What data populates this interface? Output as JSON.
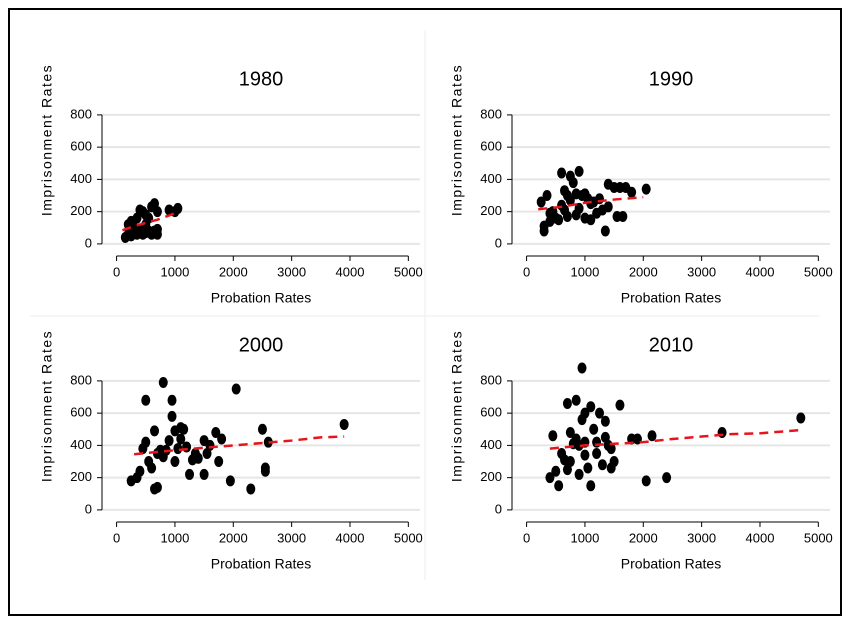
{
  "chart_data": [
    {
      "type": "scatter",
      "title": "1980",
      "xlabel": "Probation Rates",
      "ylabel": "Imprisonment Rates",
      "xlim": [
        -250,
        5200
      ],
      "ylim": [
        -75,
        880
      ],
      "xticks": [
        0,
        1000,
        2000,
        3000,
        4000,
        5000
      ],
      "yticks": [
        0,
        200,
        400,
        600,
        800
      ],
      "grid": true,
      "series": [
        {
          "color": "#000000",
          "x": [
            150,
            200,
            250,
            300,
            300,
            350,
            400,
            400,
            450,
            450,
            500,
            500,
            550,
            550,
            600,
            600,
            650,
            650,
            700,
            700,
            700,
            900,
            1000,
            1050,
            200,
            350,
            500,
            250
          ],
          "values": [
            40,
            60,
            140,
            100,
            70,
            160,
            210,
            90,
            60,
            200,
            120,
            70,
            80,
            160,
            60,
            230,
            250,
            80,
            200,
            60,
            90,
            210,
            200,
            220,
            120,
            60,
            180,
            50
          ]
        },
        {
          "color": "#e8141c",
          "line": "dashed",
          "x": [
            100,
            300,
            500,
            700,
            1000
          ],
          "values": [
            85,
            110,
            130,
            150,
            190
          ]
        }
      ]
    },
    {
      "type": "scatter",
      "title": "1990",
      "xlabel": "Probation Rates",
      "ylabel": "Imprisonment Rates",
      "xlim": [
        -250,
        5200
      ],
      "ylim": [
        -75,
        880
      ],
      "xticks": [
        0,
        1000,
        2000,
        3000,
        4000,
        5000
      ],
      "yticks": [
        0,
        200,
        400,
        600,
        800
      ],
      "grid": true,
      "series": [
        {
          "color": "#000000",
          "x": [
            250,
            300,
            300,
            350,
            400,
            400,
            450,
            500,
            550,
            600,
            600,
            650,
            650,
            700,
            700,
            750,
            750,
            800,
            850,
            850,
            900,
            900,
            950,
            1000,
            1050,
            1100,
            1100,
            1200,
            1250,
            1300,
            1350,
            1400,
            1400,
            1500,
            1550,
            1600,
            1650,
            1700,
            1800,
            2050,
            1000,
            1150
          ],
          "values": [
            260,
            80,
            110,
            300,
            190,
            140,
            200,
            160,
            150,
            440,
            240,
            330,
            210,
            300,
            170,
            420,
            270,
            380,
            310,
            180,
            450,
            220,
            300,
            160,
            280,
            150,
            250,
            190,
            280,
            210,
            80,
            370,
            230,
            350,
            170,
            350,
            170,
            350,
            320,
            340,
            310,
            260
          ]
        },
        {
          "color": "#e8141c",
          "line": "dashed",
          "x": [
            200,
            600,
            1000,
            1500,
            2000
          ],
          "values": [
            215,
            230,
            255,
            275,
            290
          ]
        }
      ]
    },
    {
      "type": "scatter",
      "title": "2000",
      "xlabel": "Probation Rates",
      "ylabel": "Imprisonment Rates",
      "xlim": [
        -250,
        5200
      ],
      "ylim": [
        -75,
        880
      ],
      "xticks": [
        0,
        1000,
        2000,
        3000,
        4000,
        5000
      ],
      "yticks": [
        0,
        200,
        400,
        600,
        800
      ],
      "grid": true,
      "series": [
        {
          "color": "#000000",
          "x": [
            250,
            350,
            400,
            450,
            500,
            500,
            550,
            600,
            650,
            650,
            700,
            700,
            750,
            800,
            800,
            850,
            900,
            950,
            950,
            1000,
            1000,
            1050,
            1100,
            1100,
            1150,
            1200,
            1250,
            1300,
            1350,
            1400,
            1500,
            1500,
            1550,
            1600,
            1700,
            1750,
            1800,
            1950,
            2050,
            2300,
            2500,
            2550,
            2550,
            2600,
            3900
          ],
          "values": [
            180,
            200,
            240,
            380,
            420,
            680,
            300,
            260,
            490,
            130,
            140,
            350,
            370,
            330,
            790,
            370,
            430,
            580,
            680,
            300,
            490,
            380,
            440,
            510,
            500,
            390,
            220,
            310,
            350,
            320,
            220,
            430,
            350,
            400,
            480,
            300,
            440,
            180,
            750,
            130,
            500,
            240,
            260,
            420,
            530
          ]
        },
        {
          "color": "#e8141c",
          "line": "dashed",
          "x": [
            300,
            1000,
            2000,
            2500,
            3000,
            3500,
            3900
          ],
          "values": [
            345,
            370,
            400,
            415,
            430,
            450,
            455
          ]
        }
      ]
    },
    {
      "type": "scatter",
      "title": "2010",
      "xlabel": "Probation Rates",
      "ylabel": "Imprisonment Rates",
      "xlim": [
        -250,
        5200
      ],
      "ylim": [
        -75,
        880
      ],
      "xticks": [
        0,
        1000,
        2000,
        3000,
        4000,
        5000
      ],
      "yticks": [
        0,
        200,
        400,
        600,
        800
      ],
      "grid": true,
      "series": [
        {
          "color": "#000000",
          "x": [
            400,
            450,
            500,
            550,
            600,
            650,
            700,
            700,
            750,
            750,
            800,
            850,
            850,
            900,
            900,
            950,
            950,
            1000,
            1000,
            1050,
            1100,
            1100,
            1150,
            1200,
            1250,
            1300,
            1350,
            1350,
            1400,
            1450,
            1450,
            1500,
            1600,
            1800,
            1900,
            2050,
            2150,
            2400,
            3350,
            4700,
            1000,
            1200
          ],
          "values": [
            200,
            460,
            240,
            150,
            350,
            310,
            660,
            250,
            480,
            300,
            410,
            440,
            680,
            220,
            400,
            880,
            560,
            420,
            340,
            260,
            640,
            150,
            500,
            420,
            600,
            280,
            450,
            550,
            400,
            260,
            380,
            300,
            650,
            440,
            440,
            180,
            460,
            200,
            480,
            570,
            600,
            350
          ]
        },
        {
          "color": "#e8141c",
          "line": "dashed",
          "x": [
            400,
            1000,
            2000,
            2500,
            3000,
            3500,
            4000,
            4700
          ],
          "values": [
            380,
            400,
            420,
            440,
            455,
            470,
            475,
            495
          ]
        }
      ]
    }
  ]
}
